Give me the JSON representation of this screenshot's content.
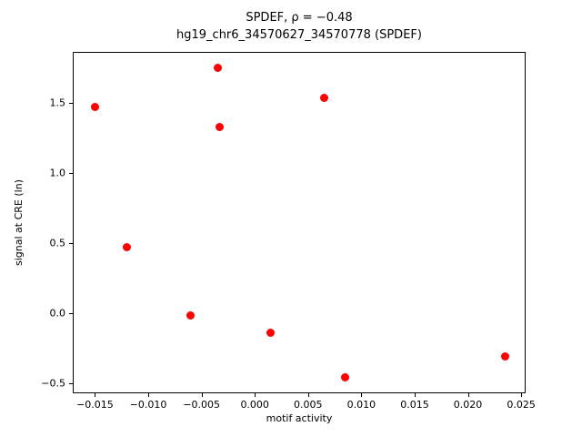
{
  "chart_data": {
    "type": "scatter",
    "title_line1": "SPDEF, ρ = −0.48",
    "title_line2": "hg19_chr6_34570627_34570778 (SPDEF)",
    "xlabel": "motif activity",
    "ylabel": "signal at CRE (ln)",
    "marker_color": "#ff0000",
    "marker_size_px": 9,
    "xlim": [
      -0.017,
      0.0255
    ],
    "ylim": [
      -0.58,
      1.86
    ],
    "xticks": [
      -0.015,
      -0.01,
      -0.005,
      0,
      0.005,
      0.01,
      0.015,
      0.02,
      0.025
    ],
    "yticks": [
      -0.5,
      0,
      0.5,
      1,
      1.5
    ],
    "xtick_decimals": 3,
    "ytick_decimals": 1,
    "grid": false,
    "legend": "none",
    "points": [
      {
        "x": -0.015,
        "y": 1.47
      },
      {
        "x": -0.012,
        "y": 0.47
      },
      {
        "x": -0.006,
        "y": -0.02
      },
      {
        "x": -0.0035,
        "y": 1.75
      },
      {
        "x": -0.0033,
        "y": 1.33
      },
      {
        "x": 0.0015,
        "y": -0.14
      },
      {
        "x": 0.0065,
        "y": 1.54
      },
      {
        "x": 0.0085,
        "y": -0.46
      },
      {
        "x": 0.0235,
        "y": -0.31
      }
    ]
  }
}
